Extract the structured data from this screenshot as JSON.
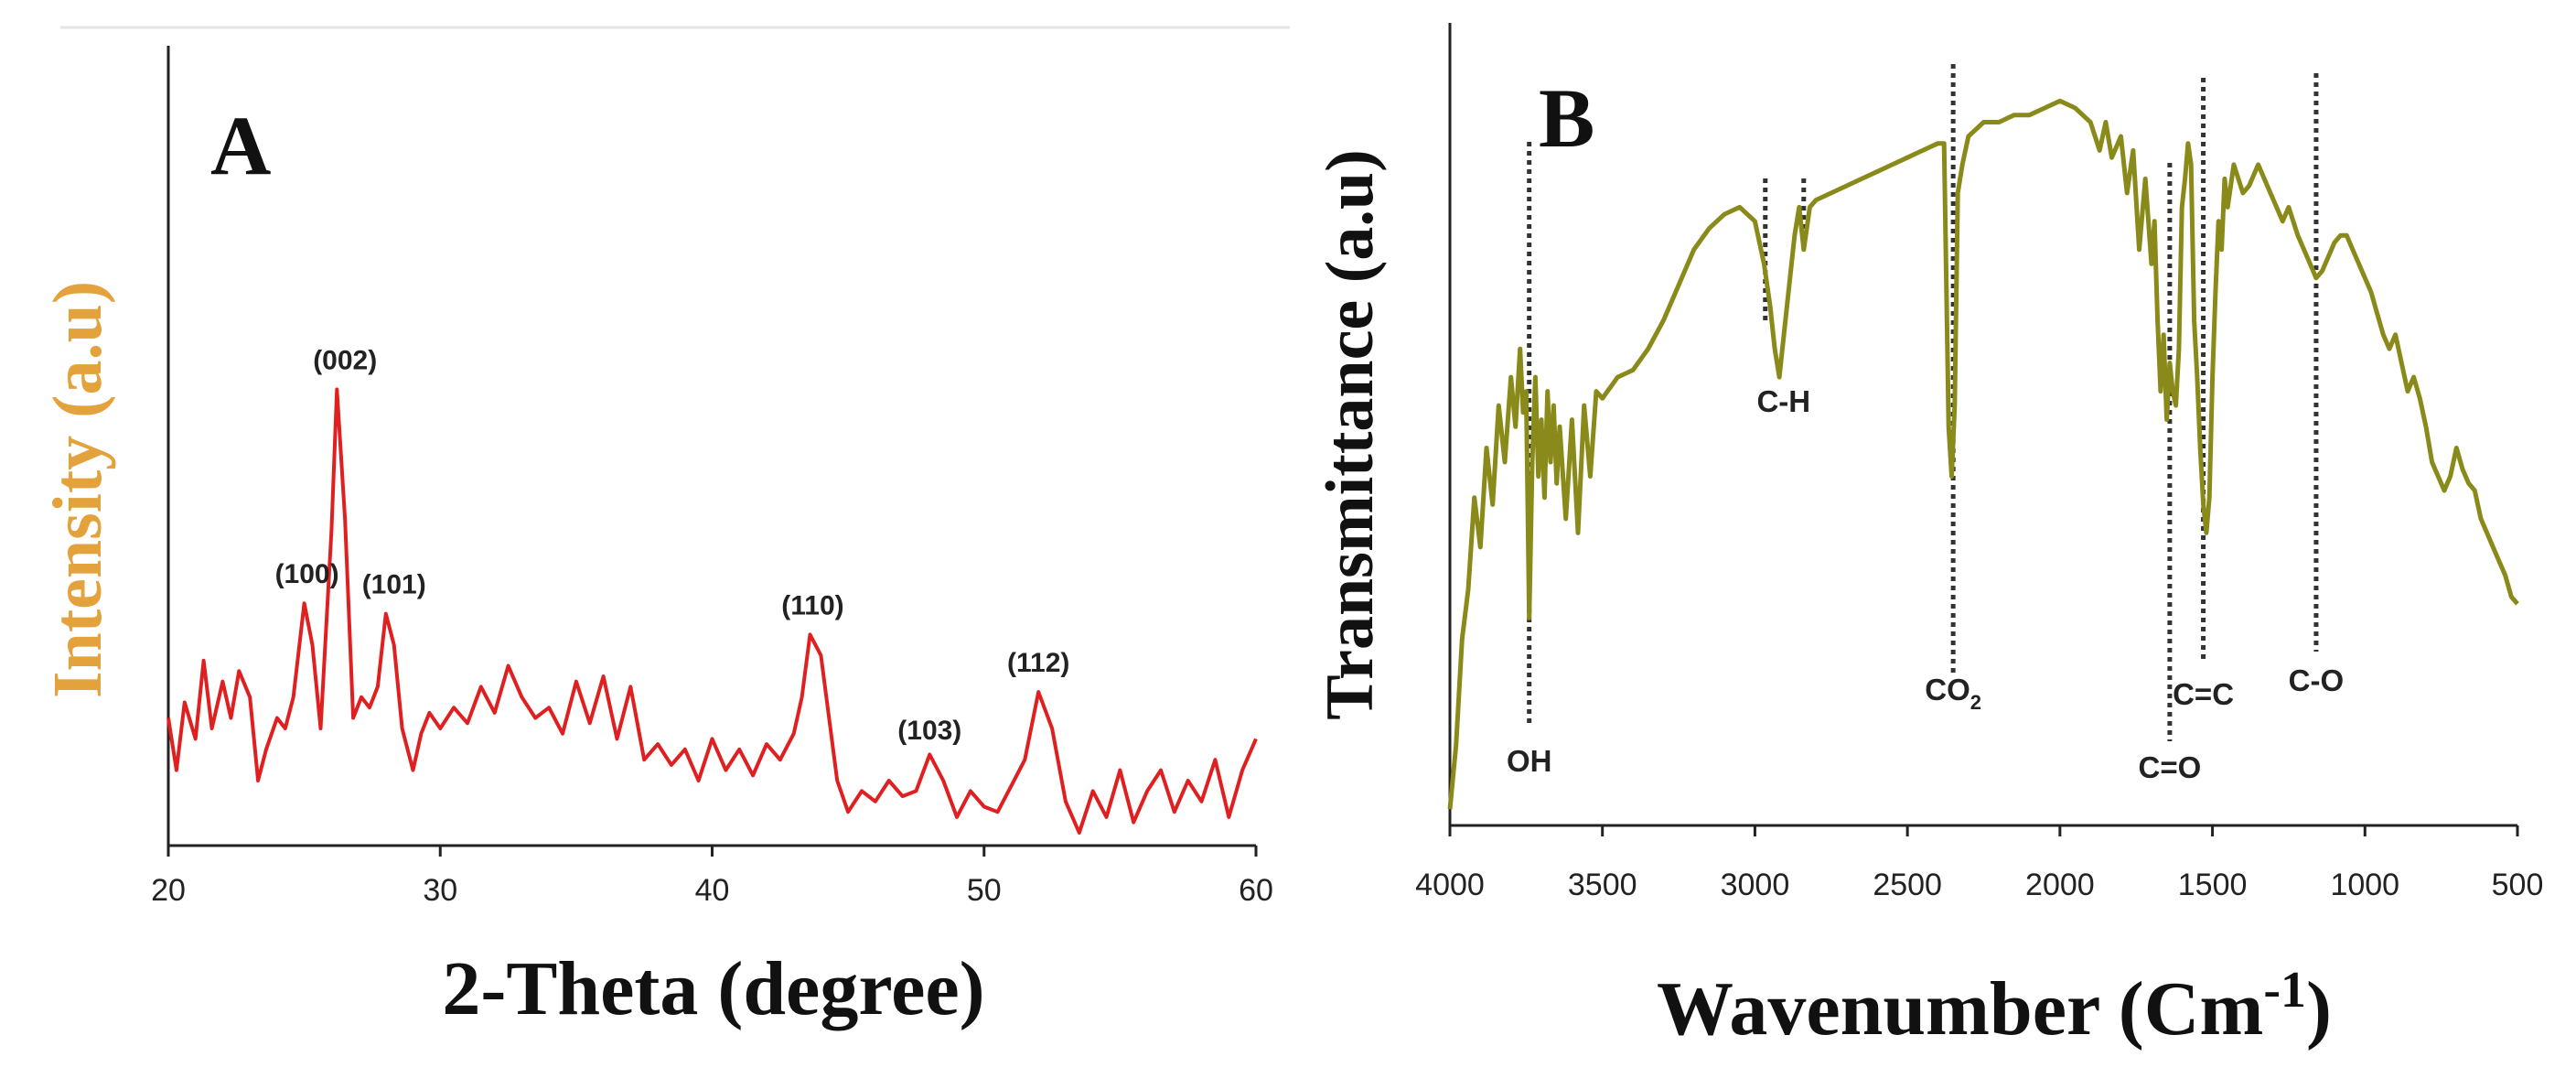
{
  "chart_data": [
    {
      "panel": "A",
      "type": "line",
      "color": "#e02020",
      "title": "",
      "xlabel": "2-Theta (degree)",
      "ylabel": "Intensity (a.u)",
      "xlim": [
        20,
        60
      ],
      "ylim": [
        0,
        100
      ],
      "xticks": [
        "20",
        "30",
        "40",
        "50",
        "60"
      ],
      "x": [
        20,
        20.3,
        20.6,
        21,
        21.3,
        21.6,
        22,
        22.3,
        22.6,
        23,
        23.3,
        23.6,
        24,
        24.3,
        24.6,
        25,
        25.3,
        25.6,
        26,
        26.2,
        26.5,
        26.8,
        27.1,
        27.4,
        27.7,
        28,
        28.3,
        28.6,
        29,
        29.3,
        29.6,
        30,
        30.5,
        31,
        31.5,
        32,
        32.5,
        33,
        33.5,
        34,
        34.5,
        35,
        35.5,
        36,
        36.5,
        37,
        37.5,
        38,
        38.5,
        39,
        39.5,
        40,
        40.5,
        41,
        41.5,
        42,
        42.5,
        43,
        43.3,
        43.6,
        44,
        44.3,
        44.6,
        45,
        45.5,
        46,
        46.5,
        47,
        47.5,
        48,
        48.5,
        49,
        49.5,
        50,
        50.5,
        51,
        51.5,
        52,
        52.5,
        53,
        53.5,
        54,
        54.5,
        55,
        55.5,
        56,
        56.5,
        57,
        57.5,
        58,
        58.5,
        59,
        59.5,
        60
      ],
      "y": [
        22,
        12,
        25,
        18,
        33,
        20,
        29,
        22,
        31,
        26,
        10,
        16,
        22,
        20,
        26,
        44,
        36,
        20,
        58,
        85,
        60,
        22,
        26,
        24,
        28,
        42,
        36,
        20,
        12,
        19,
        23,
        20,
        24,
        21,
        28,
        23,
        32,
        26,
        22,
        24,
        19,
        29,
        21,
        30,
        18,
        28,
        14,
        17,
        13,
        16,
        10,
        18,
        12,
        16,
        11,
        17,
        14,
        19,
        26,
        38,
        34,
        22,
        10,
        4,
        8,
        6,
        10,
        7,
        8,
        15,
        10,
        3,
        8,
        5,
        4,
        9,
        14,
        27,
        20,
        6,
        0,
        8,
        3,
        12,
        2,
        8,
        12,
        4,
        10,
        6,
        14,
        3,
        12,
        18
      ],
      "annotations": [
        {
          "label": "(100)",
          "x": 25.1,
          "y": 44
        },
        {
          "label": "(002)",
          "x": 26.5,
          "y": 85
        },
        {
          "label": "(101)",
          "x": 28.3,
          "y": 42
        },
        {
          "label": "(110)",
          "x": 43.7,
          "y": 38
        },
        {
          "label": "(103)",
          "x": 48.0,
          "y": 14
        },
        {
          "label": "(112)",
          "x": 52.0,
          "y": 27
        }
      ]
    },
    {
      "panel": "B",
      "type": "line",
      "color": "#8a8a1a",
      "title": "",
      "xlabel": "Wavenumber (Cm",
      "xlabel_superscript": "-1",
      "xlabel_close": ")",
      "ylabel": "Transmittance (a.u)",
      "xlim": [
        4000,
        500
      ],
      "ylim": [
        0,
        100
      ],
      "xticks": [
        "4000",
        "3500",
        "3000",
        "2500",
        "2000",
        "1500",
        "1000",
        "500"
      ],
      "x": [
        4000,
        3980,
        3960,
        3940,
        3920,
        3900,
        3880,
        3860,
        3840,
        3820,
        3800,
        3785,
        3770,
        3760,
        3750,
        3740,
        3730,
        3720,
        3710,
        3700,
        3690,
        3680,
        3670,
        3660,
        3650,
        3640,
        3620,
        3600,
        3580,
        3560,
        3540,
        3520,
        3500,
        3450,
        3400,
        3350,
        3300,
        3250,
        3200,
        3150,
        3100,
        3050,
        3000,
        2970,
        2950,
        2935,
        2920,
        2905,
        2890,
        2870,
        2855,
        2840,
        2820,
        2800,
        2750,
        2700,
        2650,
        2600,
        2550,
        2500,
        2450,
        2400,
        2380,
        2365,
        2355,
        2345,
        2335,
        2320,
        2300,
        2250,
        2200,
        2150,
        2100,
        2050,
        2000,
        1950,
        1900,
        1870,
        1850,
        1830,
        1800,
        1780,
        1760,
        1740,
        1720,
        1700,
        1690,
        1680,
        1670,
        1660,
        1650,
        1640,
        1630,
        1620,
        1610,
        1600,
        1590,
        1580,
        1570,
        1560,
        1550,
        1540,
        1530,
        1520,
        1510,
        1500,
        1490,
        1480,
        1470,
        1460,
        1450,
        1430,
        1400,
        1380,
        1350,
        1320,
        1300,
        1270,
        1250,
        1220,
        1200,
        1180,
        1160,
        1140,
        1120,
        1100,
        1080,
        1060,
        1040,
        1020,
        1000,
        980,
        960,
        940,
        920,
        900,
        880,
        860,
        840,
        820,
        800,
        780,
        760,
        740,
        720,
        700,
        680,
        660,
        640,
        620,
        600,
        580,
        560,
        540,
        520,
        500
      ],
      "y": [
        1,
        10,
        25,
        32,
        45,
        38,
        52,
        44,
        58,
        50,
        62,
        55,
        66,
        57,
        60,
        28,
        50,
        62,
        48,
        56,
        45,
        60,
        50,
        58,
        47,
        55,
        42,
        56,
        40,
        58,
        48,
        60,
        59,
        62,
        63,
        66,
        70,
        75,
        80,
        83,
        85,
        86,
        84,
        78,
        72,
        66,
        62,
        68,
        74,
        82,
        86,
        80,
        86,
        87,
        88,
        89,
        90,
        91,
        92,
        93,
        94,
        95,
        95,
        55,
        48,
        58,
        88,
        92,
        96,
        98,
        98,
        99,
        99,
        100,
        101,
        100,
        98,
        94,
        98,
        93,
        96,
        88,
        94,
        80,
        90,
        78,
        84,
        70,
        60,
        68,
        56,
        64,
        60,
        58,
        66,
        86,
        90,
        95,
        92,
        70,
        62,
        52,
        44,
        40,
        45,
        62,
        74,
        84,
        80,
        90,
        86,
        92,
        88,
        89,
        92,
        89,
        87,
        84,
        86,
        82,
        80,
        78,
        76,
        77,
        79,
        81,
        82,
        82,
        80,
        78,
        76,
        74,
        71,
        68,
        66,
        68,
        64,
        60,
        62,
        59,
        55,
        50,
        48,
        46,
        48,
        52,
        49,
        47,
        46,
        42,
        40,
        38,
        36,
        34,
        31,
        30
      ],
      "annotations": [
        {
          "label": "OH",
          "x": 3740
        },
        {
          "label": "C-H",
          "x": 2930
        },
        {
          "label": "CO",
          "subscript": "2",
          "x": 2350
        },
        {
          "label": "C=O",
          "x": 1640
        },
        {
          "label": "C=C",
          "x": 1530
        },
        {
          "label": "C-O",
          "x": 1160
        }
      ]
    }
  ]
}
